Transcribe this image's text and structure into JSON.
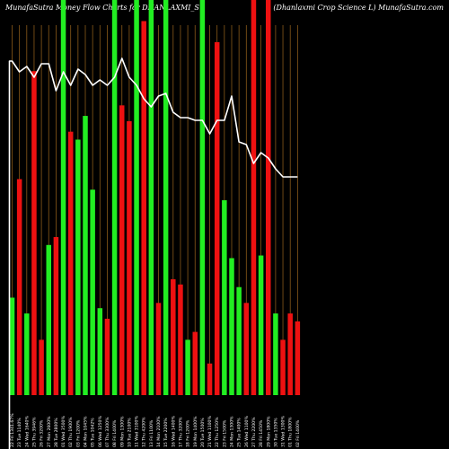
{
  "chart_data": {
    "type": "bar",
    "title_left": "MunafaSutra  Money Flow  Charts for DHANLAXMI_S",
    "title_right": "(Dhanlaxmi   Crop Science   L) MunafaSutra.com",
    "price_line_color": "#ffffff",
    "grid_line_color": "#8a5a1a",
    "up_color": "#22ee22",
    "down_color": "#ee1111",
    "grid": true,
    "bars": [
      {
        "label": "22 Fri 1341.67%",
        "value": 37,
        "dir": "up"
      },
      {
        "label": "23 Tue 1140%",
        "value": 82,
        "dir": "down"
      },
      {
        "label": "24 Wed 1640%",
        "value": 31,
        "dir": "up"
      },
      {
        "label": "25 Thu 3946%",
        "value": 123,
        "dir": "down"
      },
      {
        "label": "26 Fri 3200%",
        "value": 21,
        "dir": "down"
      },
      {
        "label": "27 Mon 2600%",
        "value": 57,
        "dir": "up"
      },
      {
        "label": "28 Tue 2800%",
        "value": 60,
        "dir": "down"
      },
      {
        "label": "01 Wed 3500%",
        "value": 150,
        "dir": "up"
      },
      {
        "label": "02 Thu 1900%",
        "value": 100,
        "dir": "down"
      },
      {
        "label": "03 Fri 1200%",
        "value": 97,
        "dir": "up"
      },
      {
        "label": "04 Mon 1045%",
        "value": 106,
        "dir": "up"
      },
      {
        "label": "05 Tue 1042%",
        "value": 78,
        "dir": "up"
      },
      {
        "label": "06 Wed 1250%",
        "value": 33,
        "dir": "up"
      },
      {
        "label": "07 Thu 3300%",
        "value": 29,
        "dir": "down"
      },
      {
        "label": "08 Fri 1400%",
        "value": 150,
        "dir": "up"
      },
      {
        "label": "09 Mon 1300%",
        "value": 110,
        "dir": "down"
      },
      {
        "label": "10 Tue 2100%",
        "value": 104,
        "dir": "down"
      },
      {
        "label": "11 Wed 3100%",
        "value": 150,
        "dir": "up"
      },
      {
        "label": "12 Thu 4200%",
        "value": 142,
        "dir": "down"
      },
      {
        "label": "13 Fri 1100%",
        "value": 150,
        "dir": "up"
      },
      {
        "label": "14 Mon 2100%",
        "value": 35,
        "dir": "down"
      },
      {
        "label": "15 Tue 2200%",
        "value": 150,
        "dir": "up"
      },
      {
        "label": "16 Wed 1400%",
        "value": 44,
        "dir": "down"
      },
      {
        "label": "17 Thu 3200%",
        "value": 42,
        "dir": "down"
      },
      {
        "label": "18 Fri 1200%",
        "value": 21,
        "dir": "up"
      },
      {
        "label": "19 Mon 1400%",
        "value": 24,
        "dir": "down"
      },
      {
        "label": "20 Tue 1500%",
        "value": 150,
        "dir": "up"
      },
      {
        "label": "21 Wed 1100%",
        "value": 12,
        "dir": "down"
      },
      {
        "label": "22 Thu 1250%",
        "value": 134,
        "dir": "down"
      },
      {
        "label": "23 Fri 1500%",
        "value": 74,
        "dir": "up"
      },
      {
        "label": "24 Mon 1300%",
        "value": 52,
        "dir": "up"
      },
      {
        "label": "25 Tue 1400%",
        "value": 41,
        "dir": "up"
      },
      {
        "label": "26 Wed 1100%",
        "value": 35,
        "dir": "down"
      },
      {
        "label": "27 Thu 2200%",
        "value": 150,
        "dir": "down"
      },
      {
        "label": "28 Fri 1450%",
        "value": 53,
        "dir": "up"
      },
      {
        "label": "29 Mon 1800%",
        "value": 150,
        "dir": "down"
      },
      {
        "label": "30 Tue 1350%",
        "value": 31,
        "dir": "up"
      },
      {
        "label": "31 Wed 1300%",
        "value": 21,
        "dir": "down"
      },
      {
        "label": "01 Thu 1800%",
        "value": 31,
        "dir": "down"
      },
      {
        "label": "02 Fri 1400%",
        "value": 28,
        "dir": "down"
      }
    ],
    "price_line": [
      134,
      130,
      132,
      128,
      133,
      133,
      123,
      130,
      125,
      131,
      129,
      125,
      127,
      125,
      128,
      135,
      128,
      125,
      120,
      117,
      121,
      122,
      115,
      113,
      113,
      112,
      112,
      107,
      112,
      112,
      121,
      104,
      103,
      96,
      100,
      98,
      94,
      91,
      91,
      91
    ]
  }
}
